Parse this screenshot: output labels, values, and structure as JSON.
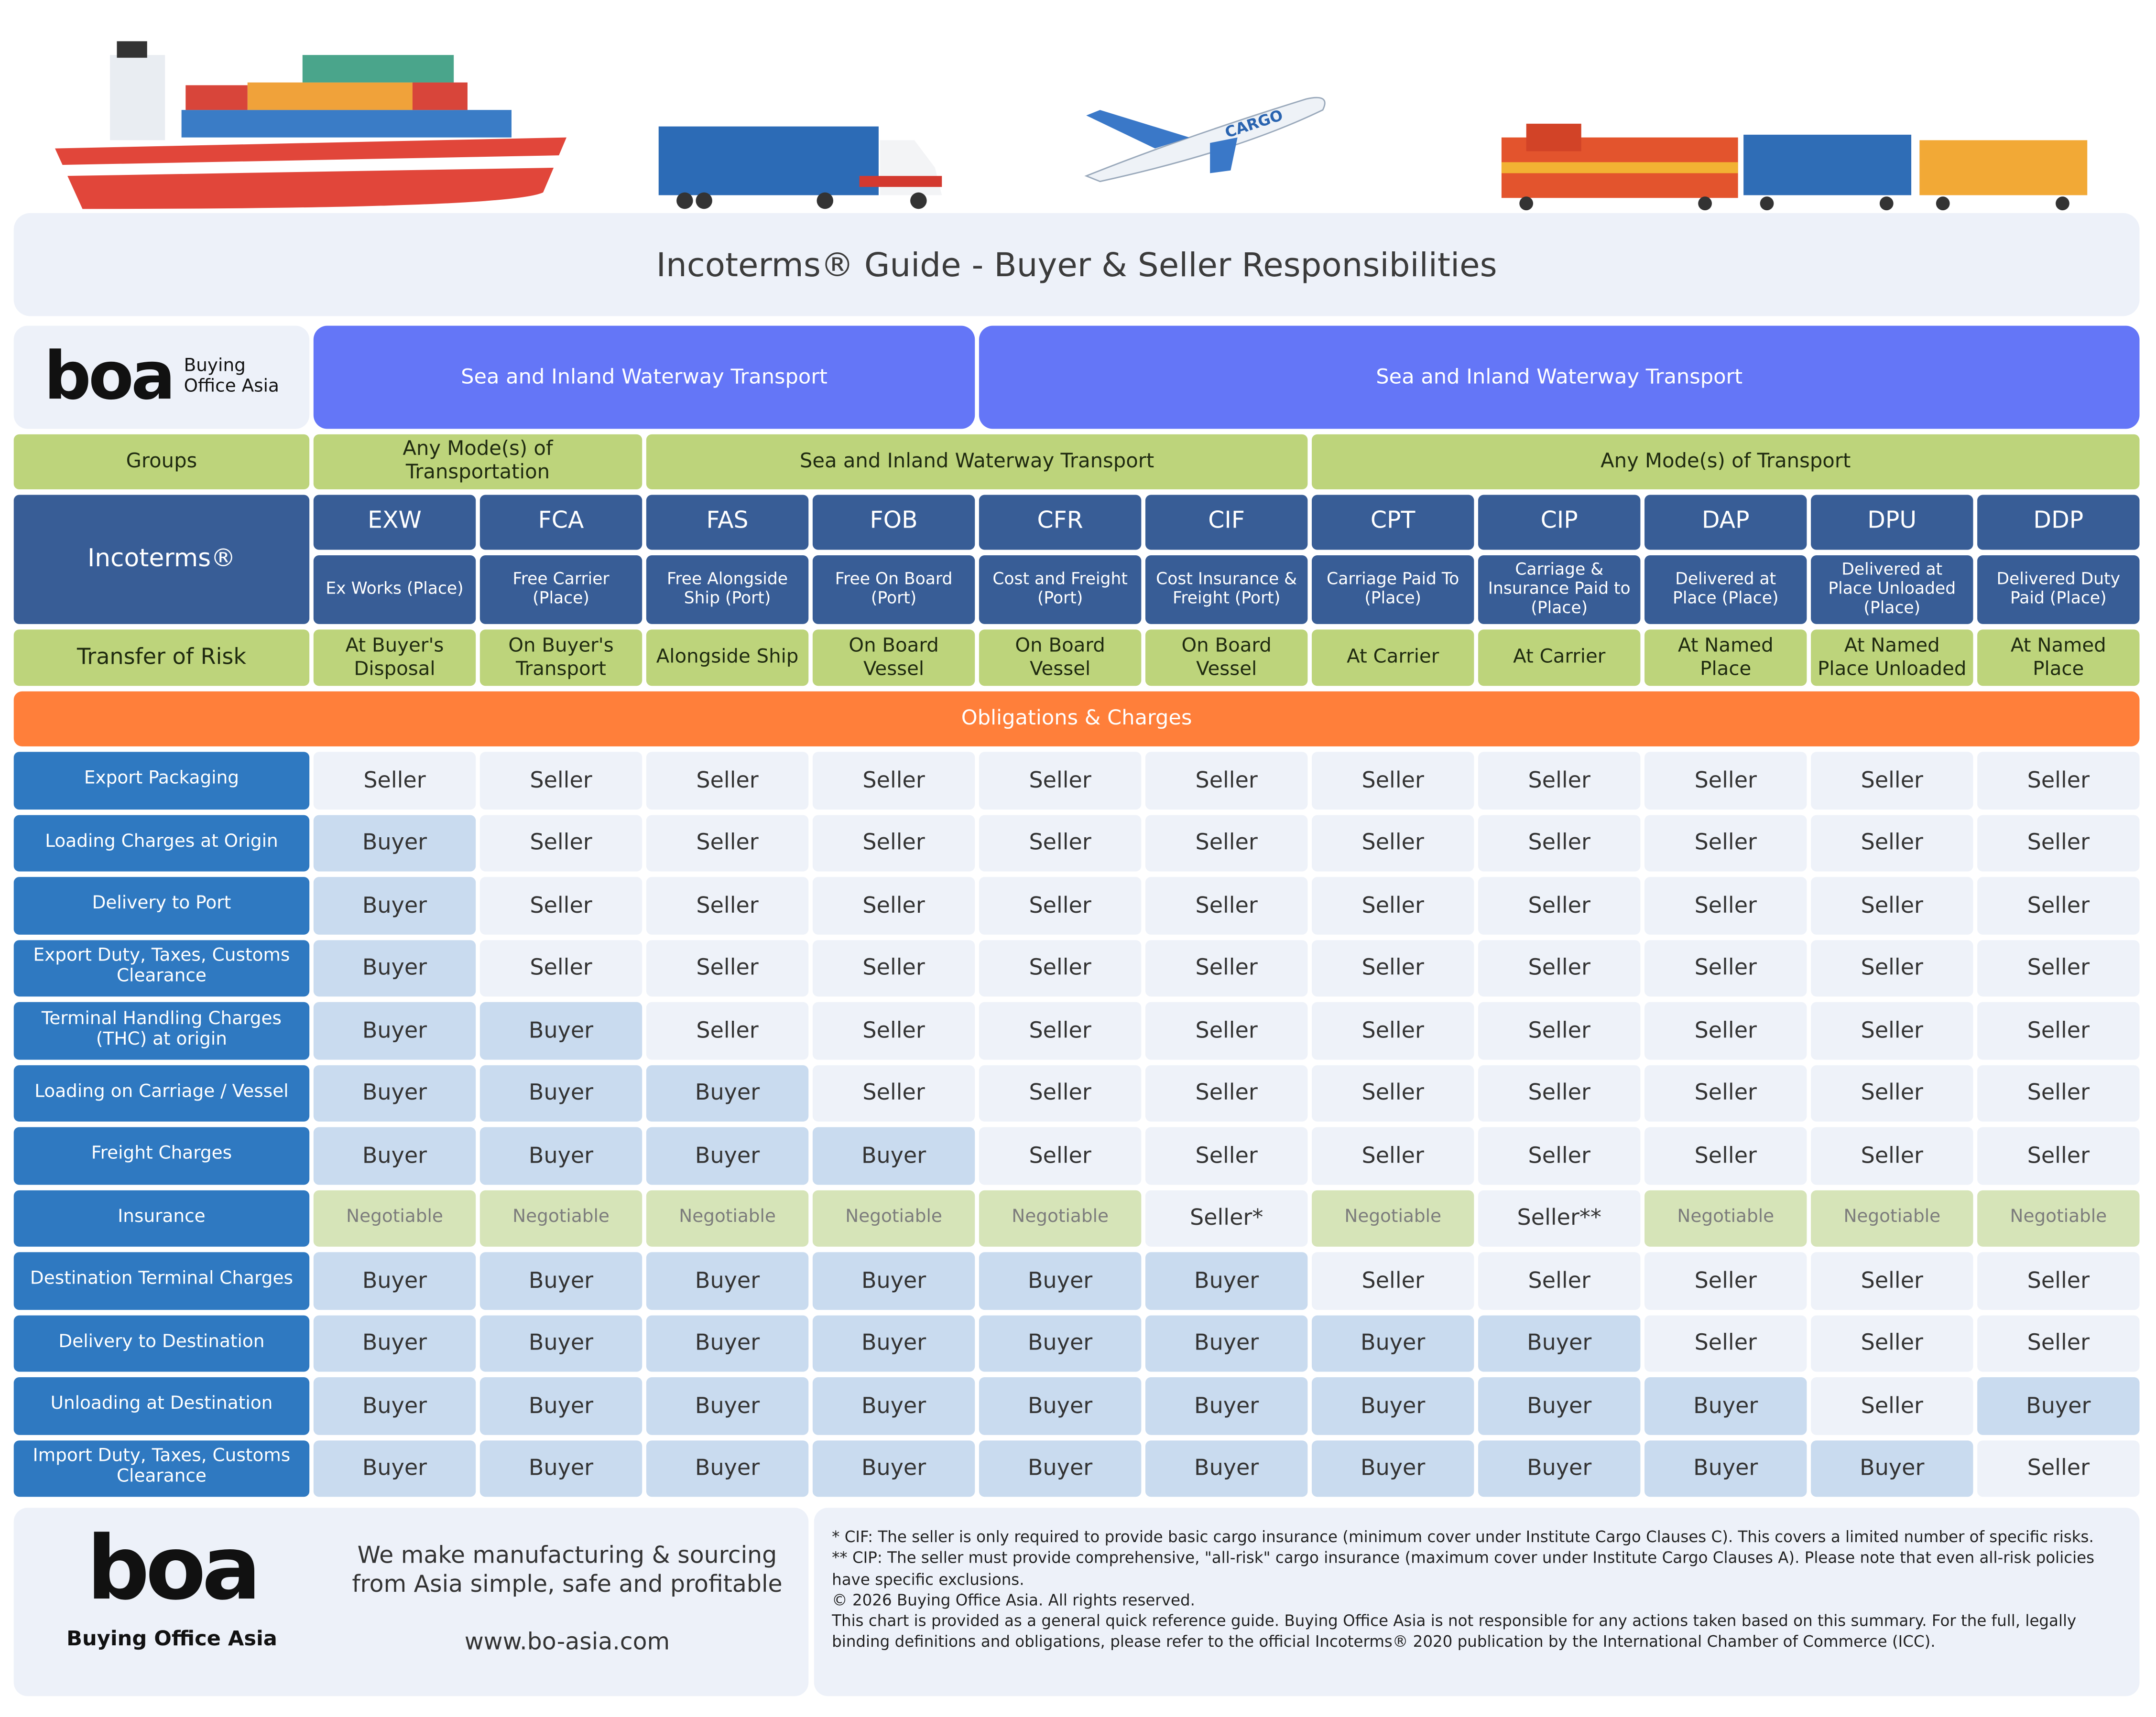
{
  "title": "Incoterms® Guide - Buyer & Seller Responsibilities",
  "illustrations": {
    "plane_label": "CARGO"
  },
  "logo": {
    "wordmark": "boa",
    "line1": "Buying",
    "line2": "Office Asia"
  },
  "bands": [
    "Sea and Inland Waterway Transport",
    "Sea and Inland Waterway Transport"
  ],
  "groups": {
    "label": "Groups",
    "items": [
      "Any Mode(s) of Transportation",
      "Sea and Inland Waterway Transport",
      "Any Mode(s) of Transport"
    ]
  },
  "incoterms_label": "Incoterms®",
  "risk_label": "Transfer of Risk",
  "terms": [
    {
      "code": "EXW",
      "name": "Ex Works (Place)",
      "risk": "At Buyer's Disposal"
    },
    {
      "code": "FCA",
      "name": "Free Carrier (Place)",
      "risk": "On Buyer's Transport"
    },
    {
      "code": "FAS",
      "name": "Free Alongside Ship (Port)",
      "risk": "Alongside Ship"
    },
    {
      "code": "FOB",
      "name": "Free On Board (Port)",
      "risk": "On Board Vessel"
    },
    {
      "code": "CFR",
      "name": "Cost and Freight (Port)",
      "risk": "On Board Vessel"
    },
    {
      "code": "CIF",
      "name": "Cost Insurance & Freight (Port)",
      "risk": "On Board Vessel"
    },
    {
      "code": "CPT",
      "name": "Carriage Paid To (Place)",
      "risk": "At Carrier"
    },
    {
      "code": "CIP",
      "name": "Carriage & Insurance Paid to (Place)",
      "risk": "At Carrier"
    },
    {
      "code": "DAP",
      "name": "Delivered at Place (Place)",
      "risk": "At Named Place"
    },
    {
      "code": "DPU",
      "name": "Delivered at Place Unloaded (Place)",
      "risk": "At Named Place Unloaded"
    },
    {
      "code": "DDP",
      "name": "Delivered Duty Paid (Place)",
      "risk": "At Named Place"
    }
  ],
  "obligations_header": "Obligations & Charges",
  "cell_fills": {
    "Buyer": "#c9dbef",
    "Seller": "#eef2f9",
    "Negotiable": "#d6e4b8",
    "Seller*": "#eef2f9",
    "Seller**": "#eef2f9"
  },
  "rows": [
    {
      "label": "Export Packaging",
      "cells": [
        "Seller",
        "Seller",
        "Seller",
        "Seller",
        "Seller",
        "Seller",
        "Seller",
        "Seller",
        "Seller",
        "Seller",
        "Seller"
      ]
    },
    {
      "label": "Loading Charges at Origin",
      "cells": [
        "Buyer",
        "Seller",
        "Seller",
        "Seller",
        "Seller",
        "Seller",
        "Seller",
        "Seller",
        "Seller",
        "Seller",
        "Seller"
      ]
    },
    {
      "label": "Delivery to Port",
      "cells": [
        "Buyer",
        "Seller",
        "Seller",
        "Seller",
        "Seller",
        "Seller",
        "Seller",
        "Seller",
        "Seller",
        "Seller",
        "Seller"
      ]
    },
    {
      "label": "Export Duty, Taxes, Customs Clearance",
      "cells": [
        "Buyer",
        "Seller",
        "Seller",
        "Seller",
        "Seller",
        "Seller",
        "Seller",
        "Seller",
        "Seller",
        "Seller",
        "Seller"
      ]
    },
    {
      "label": "Terminal Handling Charges (THC) at origin",
      "cells": [
        "Buyer",
        "Buyer",
        "Seller",
        "Seller",
        "Seller",
        "Seller",
        "Seller",
        "Seller",
        "Seller",
        "Seller",
        "Seller"
      ]
    },
    {
      "label": "Loading on Carriage / Vessel",
      "cells": [
        "Buyer",
        "Buyer",
        "Buyer",
        "Seller",
        "Seller",
        "Seller",
        "Seller",
        "Seller",
        "Seller",
        "Seller",
        "Seller"
      ]
    },
    {
      "label": "Freight Charges",
      "cells": [
        "Buyer",
        "Buyer",
        "Buyer",
        "Buyer",
        "Seller",
        "Seller",
        "Seller",
        "Seller",
        "Seller",
        "Seller",
        "Seller"
      ]
    },
    {
      "label": "Insurance",
      "cells": [
        "Negotiable",
        "Negotiable",
        "Negotiable",
        "Negotiable",
        "Negotiable",
        "Seller*",
        "Negotiable",
        "Seller**",
        "Negotiable",
        "Negotiable",
        "Negotiable"
      ]
    },
    {
      "label": "Destination Terminal Charges",
      "cells": [
        "Buyer",
        "Buyer",
        "Buyer",
        "Buyer",
        "Buyer",
        "Buyer",
        "Seller",
        "Seller",
        "Seller",
        "Seller",
        "Seller"
      ]
    },
    {
      "label": "Delivery to Destination",
      "cells": [
        "Buyer",
        "Buyer",
        "Buyer",
        "Buyer",
        "Buyer",
        "Buyer",
        "Buyer",
        "Buyer",
        "Seller",
        "Seller",
        "Seller"
      ]
    },
    {
      "label": "Unloading at Destination",
      "cells": [
        "Buyer",
        "Buyer",
        "Buyer",
        "Buyer",
        "Buyer",
        "Buyer",
        "Buyer",
        "Buyer",
        "Buyer",
        "Seller",
        "Buyer"
      ]
    },
    {
      "label": "Import Duty, Taxes, Customs Clearance",
      "cells": [
        "Buyer",
        "Buyer",
        "Buyer",
        "Buyer",
        "Buyer",
        "Buyer",
        "Buyer",
        "Buyer",
        "Buyer",
        "Buyer",
        "Seller"
      ]
    }
  ],
  "footer": {
    "wordmark": "boa",
    "caption": "Buying Office Asia",
    "tagline": "We make manufacturing & sourcing from Asia simple, safe and profitable",
    "url": "www.bo-asia.com",
    "notes": [
      "* CIF: The seller is only required to provide basic cargo insurance (minimum cover under Institute Cargo Clauses C). This covers a limited number of specific risks.",
      "** CIP: The seller must provide comprehensive, \"all-risk\" cargo insurance (maximum cover under Institute Cargo Clauses A). Please note that even all-risk policies have specific exclusions.",
      "© 2026 Buying Office Asia. All rights reserved.",
      "This chart is provided as a general quick reference guide. Buying Office Asia is not responsible for any actions taken based on this summary. For the full, legally binding definitions and obligations, please refer to the official Incoterms® 2020 publication by the International Chamber of Commerce (ICC)."
    ]
  }
}
